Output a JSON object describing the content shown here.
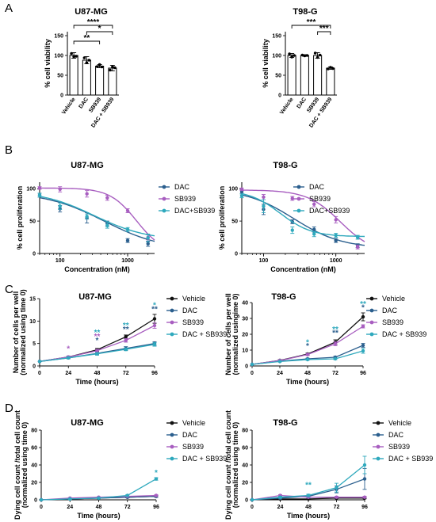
{
  "colors": {
    "DAC": "#2b5f8e",
    "SB939": "#a85ec0",
    "DAC+SB939": "#2fa9bd",
    "Vehicle": "#111111",
    "axis": "#000000",
    "bar": "#ffffff"
  },
  "panel_letters": [
    "A",
    "B",
    "C",
    "D"
  ],
  "chart_data": [
    {
      "id": "A1",
      "type": "bar",
      "title": "U87-MG",
      "categories": [
        "Vehicle",
        "DAC",
        "SB939",
        "DAC + SB939"
      ],
      "values": [
        100,
        88,
        73,
        68
      ],
      "errors": [
        7,
        9,
        4,
        7
      ],
      "points": [
        [
          105,
          97,
          98
        ],
        [
          94,
          82,
          88
        ],
        [
          72,
          77,
          71
        ],
        [
          63,
          71,
          69
        ]
      ],
      "ylabel": "% cell viability",
      "xlabel": "",
      "ylim": [
        0,
        160
      ],
      "yticks": [
        0,
        50,
        100,
        150
      ],
      "significance": [
        {
          "from": 0,
          "to": 3,
          "label": "****"
        },
        {
          "from": 1,
          "to": 3,
          "label": "*"
        },
        {
          "from": 0,
          "to": 2,
          "label": "**"
        }
      ]
    },
    {
      "id": "A2",
      "type": "bar",
      "title": "T98-G",
      "categories": [
        "Vehicle",
        "DAC",
        "SB939",
        "DAC + SB939"
      ],
      "values": [
        100,
        100,
        100,
        68
      ],
      "errors": [
        5,
        2,
        7,
        3
      ],
      "points": [
        [
          104,
          96,
          100
        ],
        [
          101,
          99,
          100
        ],
        [
          106,
          95,
          101
        ],
        [
          66,
          70,
          67
        ]
      ],
      "ylabel": "% cell viability",
      "xlabel": "",
      "ylim": [
        0,
        160
      ],
      "yticks": [
        0,
        50,
        100,
        150
      ],
      "significance": [
        {
          "from": 0,
          "to": 3,
          "label": "***"
        },
        {
          "from": 2,
          "to": 3,
          "label": "***"
        }
      ]
    },
    {
      "id": "B1",
      "type": "line",
      "title": "U87-MG",
      "xscale": "log",
      "xlim": [
        50,
        2500
      ],
      "ylim": [
        0,
        110
      ],
      "xticks": [
        100,
        1000
      ],
      "yticks": [
        0,
        50,
        100
      ],
      "xlabel": "Concentration (nM)",
      "ylabel": "% cell proliferation",
      "series": [
        {
          "name": "DAC",
          "x": [
            50,
            100,
            250,
            500,
            1000,
            2000
          ],
          "y": [
            90,
            69,
            55,
            46,
            20,
            15
          ],
          "err": [
            3,
            5,
            8,
            4,
            3,
            4
          ],
          "fit": {
            "top": 95,
            "bottom": 5,
            "ec50": 450,
            "hill": 1.0
          }
        },
        {
          "name": "SB939",
          "x": [
            50,
            100,
            250,
            500,
            1000,
            2000
          ],
          "y": [
            101,
            99,
            92,
            86,
            66,
            25
          ],
          "err": [
            2,
            4,
            5,
            4,
            3,
            4
          ],
          "fit": {
            "top": 101,
            "bottom": 0,
            "ec50": 1350,
            "hill": 2.2
          }
        },
        {
          "name": "DAC+SB939",
          "x": [
            50,
            100,
            250,
            500,
            1000,
            2000
          ],
          "y": [
            90,
            73,
            57,
            43,
            37,
            24
          ],
          "err": [
            3,
            5,
            4,
            4,
            3,
            6
          ],
          "fit": {
            "top": 97,
            "bottom": 20,
            "ec50": 320,
            "hill": 1.1
          }
        }
      ]
    },
    {
      "id": "B2",
      "type": "line",
      "title": "T98-G",
      "xscale": "log",
      "xlim": [
        50,
        2500
      ],
      "ylim": [
        0,
        110
      ],
      "xticks": [
        100,
        1000
      ],
      "yticks": [
        0,
        50,
        100
      ],
      "xlabel": "Concentration (nM)",
      "ylabel": "% cell proliferation",
      "series": [
        {
          "name": "DAC",
          "x": [
            50,
            100,
            250,
            500,
            1000,
            2000
          ],
          "y": [
            95,
            68,
            49,
            37,
            20,
            12
          ],
          "err": [
            3,
            8,
            3,
            4,
            3,
            3
          ],
          "fit": {
            "top": 100,
            "bottom": 8,
            "ec50": 260,
            "hill": 1.3
          }
        },
        {
          "name": "SB939",
          "x": [
            50,
            100,
            250,
            500,
            1000,
            2000
          ],
          "y": [
            99,
            87,
            85,
            76,
            52,
            10
          ],
          "err": [
            2,
            4,
            3,
            4,
            5,
            3
          ],
          "fit": {
            "top": 98,
            "bottom": 0,
            "ec50": 1150,
            "hill": 1.9
          }
        },
        {
          "name": "DAC+SB939",
          "x": [
            50,
            100,
            250,
            500,
            1000,
            2000
          ],
          "y": [
            89,
            73,
            36,
            30,
            28,
            25
          ],
          "err": [
            3,
            10,
            5,
            4,
            3,
            3
          ],
          "fit": {
            "top": 98,
            "bottom": 26,
            "ec50": 170,
            "hill": 2.0
          }
        }
      ]
    },
    {
      "id": "C1",
      "type": "line",
      "title": "U87-MG",
      "xlim": [
        0,
        96
      ],
      "ylim": [
        0,
        15
      ],
      "xticks": [
        0,
        24,
        48,
        72,
        96
      ],
      "yticks": [
        0,
        5,
        10,
        15
      ],
      "xlabel": "Time (hours)",
      "ylabel": "Number of cells per well",
      "ylabel2": "(normalized using time 0)",
      "series": [
        {
          "name": "Vehicle",
          "x": [
            0,
            24,
            48,
            72,
            96
          ],
          "y": [
            1,
            2.0,
            3.6,
            6.5,
            10.5
          ],
          "err": [
            0,
            0.2,
            0.3,
            0.4,
            1.0
          ]
        },
        {
          "name": "DAC",
          "x": [
            0,
            24,
            48,
            72,
            96
          ],
          "y": [
            1,
            1.8,
            2.8,
            3.9,
            5.0
          ],
          "err": [
            0,
            0.2,
            0.3,
            0.4,
            0.4
          ]
        },
        {
          "name": "SB939",
          "x": [
            0,
            24,
            48,
            72,
            96
          ],
          "y": [
            1,
            2.0,
            3.4,
            5.7,
            9.0
          ],
          "err": [
            0,
            0.2,
            0.3,
            0.4,
            0.6
          ]
        },
        {
          "name": "DAC + SB939",
          "x": [
            0,
            24,
            48,
            72,
            96
          ],
          "y": [
            1,
            1.8,
            2.7,
            3.7,
            4.8
          ],
          "err": [
            0,
            0.2,
            0.3,
            0.3,
            0.4
          ]
        }
      ],
      "annotations": [
        {
          "x": 24,
          "y": 3.3,
          "label": "*",
          "series": "SB939"
        },
        {
          "x": 48,
          "y": 6.9,
          "label": "**",
          "series": "DAC + SB939"
        },
        {
          "x": 48,
          "y": 6.0,
          "label": "**",
          "series": "SB939"
        },
        {
          "x": 48,
          "y": 5.1,
          "label": "*",
          "series": "DAC"
        },
        {
          "x": 72,
          "y": 8.5,
          "label": "**",
          "series": "DAC + SB939"
        },
        {
          "x": 72,
          "y": 7.6,
          "label": "**",
          "series": "DAC"
        },
        {
          "x": 96,
          "y": 13.0,
          "label": "*",
          "series": "DAC + SB939"
        },
        {
          "x": 96,
          "y": 12.1,
          "label": "**",
          "series": "DAC"
        }
      ]
    },
    {
      "id": "C2",
      "type": "line",
      "title": "T98-G",
      "xlim": [
        0,
        96
      ],
      "ylim": [
        0,
        40
      ],
      "xticks": [
        0,
        24,
        48,
        72,
        96
      ],
      "yticks": [
        0,
        10,
        20,
        30,
        40
      ],
      "xlabel": "Time (hours)",
      "ylabel": "Number of cells per well",
      "ylabel2": "(normalized usingime 0)",
      "series": [
        {
          "name": "Vehicle",
          "x": [
            0,
            24,
            48,
            72,
            96
          ],
          "y": [
            1,
            3.5,
            7.5,
            15,
            31
          ],
          "err": [
            0,
            0.4,
            0.6,
            1.5,
            2.5
          ]
        },
        {
          "name": "DAC",
          "x": [
            0,
            24,
            48,
            72,
            96
          ],
          "y": [
            1,
            3.0,
            4.5,
            5.5,
            13
          ],
          "err": [
            0,
            0.3,
            0.4,
            0.6,
            1.2
          ]
        },
        {
          "name": "SB939",
          "x": [
            0,
            24,
            48,
            72,
            96
          ],
          "y": [
            1,
            3.4,
            7.2,
            14,
            25
          ],
          "err": [
            0,
            0.4,
            0.6,
            1.2,
            1.0
          ]
        },
        {
          "name": "DAC + SB939",
          "x": [
            0,
            24,
            48,
            72,
            96
          ],
          "y": [
            1,
            2.8,
            4.0,
            4.5,
            9.5
          ],
          "err": [
            0,
            0.3,
            0.4,
            0.5,
            1.5
          ]
        }
      ],
      "annotations": [
        {
          "x": 48,
          "y": 13.2,
          "label": "*",
          "series": "DAC + SB939"
        },
        {
          "x": 48,
          "y": 11.0,
          "label": "*",
          "series": "DAC"
        },
        {
          "x": 72,
          "y": 21.5,
          "label": "**",
          "series": "DAC + SB939"
        },
        {
          "x": 72,
          "y": 19.3,
          "label": "**",
          "series": "DAC"
        },
        {
          "x": 96,
          "y": 37.5,
          "label": "**",
          "series": "DAC + SB939"
        },
        {
          "x": 96,
          "y": 35.3,
          "label": "*",
          "series": "DAC"
        }
      ]
    },
    {
      "id": "D1",
      "type": "line",
      "title": "U87-MG",
      "xlim": [
        0,
        96
      ],
      "ylim": [
        0,
        80
      ],
      "xticks": [
        0,
        24,
        48,
        72,
        96
      ],
      "yticks": [
        0,
        20,
        40,
        60,
        80
      ],
      "xlabel": "Time (hours)",
      "ylabel": "Dying cell count /total cell count",
      "ylabel2": "(normalized using time 0)",
      "series": [
        {
          "name": "Vehicle",
          "x": [
            0,
            24,
            48,
            72,
            96
          ],
          "y": [
            0,
            1,
            2,
            3,
            4
          ],
          "err": [
            0,
            0.5,
            0.5,
            0.8,
            1
          ]
        },
        {
          "name": "DAC",
          "x": [
            0,
            24,
            48,
            72,
            96
          ],
          "y": [
            0,
            1,
            2,
            3,
            4
          ],
          "err": [
            0,
            0.5,
            0.5,
            0.8,
            1
          ]
        },
        {
          "name": "SB939",
          "x": [
            0,
            24,
            48,
            72,
            96
          ],
          "y": [
            0,
            2,
            3,
            4,
            5
          ],
          "err": [
            0,
            0.5,
            0.5,
            0.8,
            1
          ]
        },
        {
          "name": "DAC + SB939",
          "x": [
            0,
            24,
            48,
            72,
            96
          ],
          "y": [
            0,
            1,
            2,
            5,
            24
          ],
          "err": [
            0,
            0.5,
            0.5,
            1,
            1.5
          ]
        }
      ],
      "annotations": [
        {
          "x": 96,
          "y": 28,
          "label": "*",
          "series": "DAC + SB939"
        }
      ]
    },
    {
      "id": "D2",
      "type": "line",
      "title": "T98-G",
      "xlim": [
        0,
        96
      ],
      "ylim": [
        0,
        80
      ],
      "xticks": [
        0,
        24,
        48,
        72,
        96
      ],
      "yticks": [
        0,
        20,
        40,
        60,
        80
      ],
      "xlabel": "Time (hours)",
      "ylabel": "Dying cell count /total cell count",
      "ylabel2": "(normalized using time 0)",
      "series": [
        {
          "name": "Vehicle",
          "x": [
            0,
            24,
            48,
            72,
            96
          ],
          "y": [
            0,
            1,
            1,
            2,
            2
          ],
          "err": [
            0,
            0.5,
            0.5,
            0.6,
            0.8
          ]
        },
        {
          "name": "DAC",
          "x": [
            0,
            24,
            48,
            72,
            96
          ],
          "y": [
            0,
            2,
            4,
            12,
            24
          ],
          "err": [
            0,
            1,
            1.5,
            4,
            12
          ]
        },
        {
          "name": "SB939",
          "x": [
            0,
            24,
            48,
            72,
            96
          ],
          "y": [
            0,
            5,
            3,
            3,
            3
          ],
          "err": [
            0,
            1,
            1,
            1,
            1
          ]
        },
        {
          "name": "DAC + SB939",
          "x": [
            0,
            24,
            48,
            72,
            96
          ],
          "y": [
            0,
            3,
            5,
            14,
            40
          ],
          "err": [
            0,
            1,
            1.5,
            5,
            10
          ]
        }
      ],
      "annotations": [
        {
          "x": 48,
          "y": 14,
          "label": "**",
          "series": "DAC + SB939"
        }
      ]
    }
  ]
}
